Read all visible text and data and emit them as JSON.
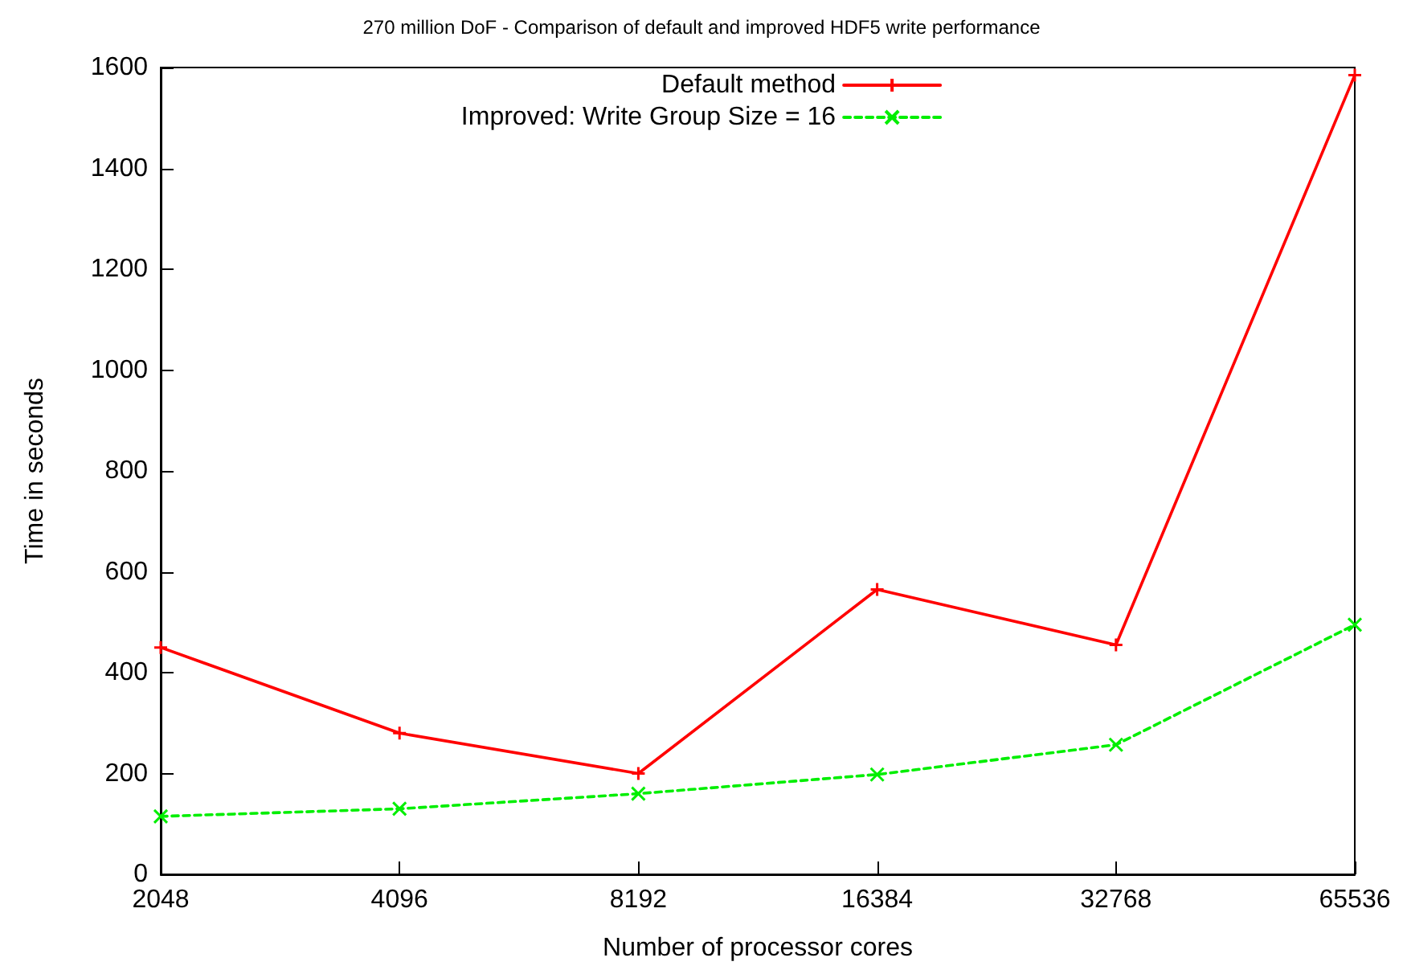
{
  "chart_data": {
    "type": "line",
    "title": "270 million DoF - Comparison of default and improved HDF5 write performance",
    "xlabel": "Number of processor cores",
    "ylabel": "Time in seconds",
    "categories": [
      "2048",
      "4096",
      "8192",
      "16384",
      "32768",
      "65536"
    ],
    "series": [
      {
        "name": "Default method",
        "color": "#ff0000",
        "marker": "cross",
        "line_style": "solid",
        "values": [
          450,
          280,
          200,
          565,
          455,
          1585
        ]
      },
      {
        "name": "Improved: Write Group Size = 16",
        "color": "#00ee00",
        "marker": "x",
        "line_style": "dashed",
        "values": [
          115,
          130,
          160,
          198,
          257,
          495
        ]
      }
    ],
    "ylim": [
      0,
      1600
    ],
    "yticks": [
      0,
      200,
      400,
      600,
      800,
      1000,
      1200,
      1400,
      1600
    ],
    "grid": false,
    "legend": "top"
  }
}
